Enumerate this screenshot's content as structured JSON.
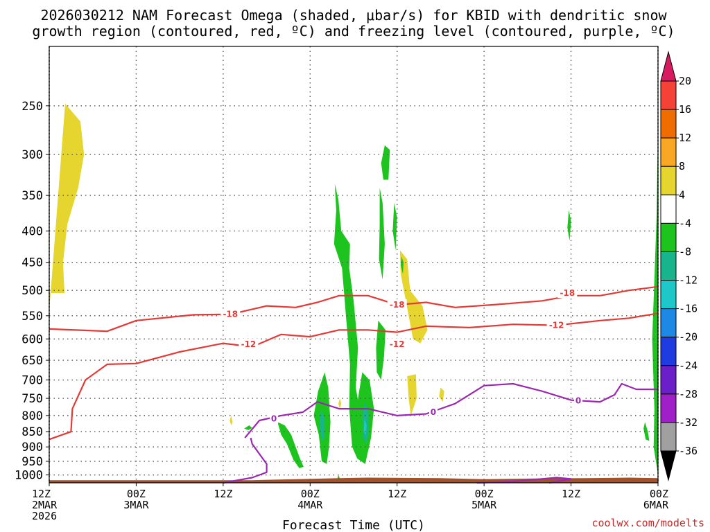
{
  "title_line1": "2026030212 NAM Forecast Omega (shaded, μbar/s) for KBID with dendritic snow",
  "title_line2": "growth region (contoured, red, ºC) and freezing level (contoured, purple, ºC)",
  "credit": "coolwx.com/modelts",
  "chart_data": {
    "type": "heatmap",
    "xlabel": "Forecast Time (UTC)",
    "y_scale": "log-pressure",
    "ylim": [
      1030,
      200
    ],
    "y_ticks": [
      "250",
      "300",
      "350",
      "400",
      "450",
      "500",
      "550",
      "600",
      "650",
      "700",
      "750",
      "800",
      "850",
      "900",
      "950",
      "1000"
    ],
    "x_range_hours": [
      0,
      84
    ],
    "x_ticks": [
      {
        "hour": 0,
        "lines": [
          "12Z",
          "2MAR",
          "2026"
        ]
      },
      {
        "hour": 12,
        "lines": [
          "00Z",
          "3MAR"
        ]
      },
      {
        "hour": 24,
        "lines": [
          "12Z"
        ]
      },
      {
        "hour": 36,
        "lines": [
          "00Z",
          "4MAR"
        ]
      },
      {
        "hour": 48,
        "lines": [
          "12Z"
        ]
      },
      {
        "hour": 60,
        "lines": [
          "00Z",
          "5MAR"
        ]
      },
      {
        "hour": 72,
        "lines": [
          "12Z"
        ]
      },
      {
        "hour": 84,
        "lines": [
          "00Z",
          "6MAR"
        ]
      }
    ],
    "grid": true,
    "colorbar": {
      "labels": [
        "20",
        "16",
        "12",
        "8",
        "4",
        "-4",
        "-8",
        "-12",
        "-16",
        "-20",
        "-24",
        "-28",
        "-32",
        "-36"
      ],
      "levels": [
        20,
        16,
        12,
        8,
        4,
        -4,
        -8,
        -12,
        -16,
        -20,
        -24,
        -28,
        -32,
        -36
      ],
      "colors": [
        "#d81b60",
        "#f44336",
        "#ef6c00",
        "#f9a825",
        "#e6d52e",
        "#ffffff",
        "#1ec41e",
        "#18b48c",
        "#1ec8c8",
        "#1e88e5",
        "#1e3ce0",
        "#6a1fc8",
        "#a020c8",
        "#a0a0a0",
        "#000000"
      ]
    },
    "omega_regions": [
      {
        "level": "4",
        "color": "#e6d52e",
        "points": [
          [
            0,
            540
          ],
          [
            2.2,
            248
          ],
          [
            4.3,
            265
          ],
          [
            4.8,
            300
          ],
          [
            4,
            340
          ],
          [
            2.5,
            390
          ],
          [
            1.9,
            450
          ],
          [
            2.1,
            505
          ],
          [
            0,
            505
          ]
        ]
      },
      {
        "level": "4",
        "color": "#e6d52e",
        "points": [
          [
            48.4,
            430
          ],
          [
            49.4,
            445
          ],
          [
            49.8,
            500
          ],
          [
            51.5,
            530
          ],
          [
            52.2,
            580
          ],
          [
            51.2,
            610
          ],
          [
            50.2,
            600
          ],
          [
            49.2,
            520
          ],
          [
            48.5,
            470
          ]
        ]
      },
      {
        "level": "4",
        "color": "#e6d52e",
        "points": [
          [
            49.4,
            690
          ],
          [
            50.6,
            685
          ],
          [
            50.7,
            750
          ],
          [
            49.9,
            800
          ],
          [
            49.6,
            750
          ]
        ]
      },
      {
        "level": "4",
        "color": "#e6d52e",
        "points": [
          [
            54,
            720
          ],
          [
            54.5,
            730
          ],
          [
            54.3,
            760
          ],
          [
            53.8,
            745
          ]
        ]
      },
      {
        "level": "4",
        "color": "#e6d52e",
        "points": [
          [
            25.1,
            800
          ],
          [
            25.3,
            820
          ],
          [
            25.1,
            830
          ],
          [
            24.9,
            815
          ]
        ]
      },
      {
        "level": "4",
        "color": "#e6d52e",
        "points": [
          [
            40.1,
            750
          ],
          [
            40.3,
            765
          ],
          [
            40.1,
            780
          ],
          [
            39.9,
            765
          ]
        ]
      },
      {
        "level": "-4",
        "color": "#1ec41e",
        "points": [
          [
            46.3,
            290
          ],
          [
            47,
            295
          ],
          [
            46.8,
            330
          ],
          [
            46.1,
            330
          ],
          [
            45.8,
            310
          ]
        ]
      },
      {
        "level": "-4",
        "color": "#1ec41e",
        "points": [
          [
            39.4,
            335
          ],
          [
            39.9,
            355
          ],
          [
            40.3,
            400
          ],
          [
            41.5,
            420
          ],
          [
            41.4,
            460
          ],
          [
            42,
            520
          ],
          [
            42.6,
            620
          ],
          [
            42.3,
            720
          ],
          [
            43.2,
            830
          ],
          [
            42.5,
            940
          ],
          [
            41.8,
            900
          ],
          [
            41.4,
            780
          ],
          [
            41.5,
            660
          ],
          [
            41,
            560
          ],
          [
            40.4,
            460
          ],
          [
            39.3,
            420
          ],
          [
            39.6,
            370
          ]
        ]
      },
      {
        "level": "-4",
        "color": "#1ec41e",
        "points": [
          [
            45.6,
            340
          ],
          [
            46,
            360
          ],
          [
            46.3,
            420
          ],
          [
            46,
            480
          ],
          [
            45.5,
            445
          ],
          [
            45.6,
            390
          ]
        ]
      },
      {
        "level": "-4",
        "color": "#1ec41e",
        "points": [
          [
            47.6,
            360
          ],
          [
            48,
            380
          ],
          [
            47.8,
            430
          ],
          [
            47.4,
            400
          ]
        ]
      },
      {
        "level": "-4",
        "color": "#1ec41e",
        "points": [
          [
            45.4,
            560
          ],
          [
            46.4,
            580
          ],
          [
            46.2,
            640
          ],
          [
            45.8,
            700
          ],
          [
            45.2,
            680
          ],
          [
            45.1,
            620
          ]
        ]
      },
      {
        "level": "-4",
        "color": "#1ec41e",
        "points": [
          [
            48.6,
            440
          ],
          [
            48.9,
            450
          ],
          [
            48.8,
            470
          ],
          [
            48.5,
            455
          ]
        ]
      },
      {
        "level": "-4",
        "color": "#1ec41e",
        "points": [
          [
            39.9,
            1000
          ],
          [
            40.2,
            1020
          ],
          [
            39.7,
            1020
          ]
        ]
      },
      {
        "level": "-4",
        "color": "#1ec41e",
        "points": [
          [
            38,
            680
          ],
          [
            38.5,
            720
          ],
          [
            38.8,
            820
          ],
          [
            38.6,
            900
          ],
          [
            38.3,
            960
          ],
          [
            37.6,
            950
          ],
          [
            37.2,
            860
          ],
          [
            36.5,
            800
          ],
          [
            37.1,
            730
          ]
        ]
      },
      {
        "level": "-4",
        "color": "#1ec41e",
        "points": [
          [
            43.2,
            680
          ],
          [
            44.2,
            700
          ],
          [
            44.8,
            780
          ],
          [
            44.4,
            870
          ],
          [
            43.6,
            960
          ],
          [
            42.5,
            940
          ],
          [
            42.2,
            850
          ],
          [
            42.6,
            750
          ]
        ]
      },
      {
        "level": "-4",
        "color": "#1ec41e",
        "points": [
          [
            31.5,
            820
          ],
          [
            32.5,
            830
          ],
          [
            33.4,
            860
          ],
          [
            34,
            900
          ],
          [
            34.6,
            940
          ],
          [
            35.1,
            970
          ],
          [
            34.5,
            975
          ],
          [
            33.7,
            945
          ],
          [
            32.8,
            890
          ],
          [
            32,
            860
          ]
        ]
      },
      {
        "level": "-4",
        "color": "#1ec41e",
        "points": [
          [
            27.6,
            830
          ],
          [
            28,
            838
          ],
          [
            27.5,
            845
          ],
          [
            26.9,
            840
          ]
        ]
      },
      {
        "level": "-4",
        "color": "#1ec41e",
        "points": [
          [
            71.7,
            370
          ],
          [
            72,
            385
          ],
          [
            71.8,
            415
          ],
          [
            71.5,
            395
          ]
        ]
      },
      {
        "level": "-4",
        "color": "#1ec41e",
        "points": [
          [
            82.2,
            820
          ],
          [
            82.6,
            850
          ],
          [
            82.8,
            880
          ],
          [
            82.3,
            875
          ],
          [
            82,
            840
          ]
        ]
      },
      {
        "level": "-4",
        "color": "#1ec41e",
        "points": [
          [
            84,
            270
          ],
          [
            83.8,
            380
          ],
          [
            83.5,
            480
          ],
          [
            83.2,
            600
          ],
          [
            83.5,
            780
          ],
          [
            83.4,
            900
          ],
          [
            84,
            1000
          ]
        ]
      },
      {
        "level": "-8",
        "color": "#18b48c",
        "points": [
          [
            43.6,
            760
          ],
          [
            44,
            790
          ],
          [
            44,
            860
          ],
          [
            43.7,
            890
          ],
          [
            43.3,
            870
          ],
          [
            43.2,
            800
          ]
        ]
      },
      {
        "level": "-8",
        "color": "#18b48c",
        "points": [
          [
            37.5,
            780
          ],
          [
            38,
            810
          ],
          [
            38,
            870
          ],
          [
            37.6,
            880
          ],
          [
            37.3,
            830
          ]
        ]
      },
      {
        "level": "-12",
        "color": "#1ec8c8",
        "points": [
          [
            43.5,
            810
          ],
          [
            43.8,
            830
          ],
          [
            43.7,
            860
          ],
          [
            43.4,
            850
          ]
        ]
      }
    ],
    "contours": [
      {
        "label": "-18",
        "color": "#e53935",
        "points": [
          [
            0,
            578
          ],
          [
            8,
            583
          ],
          [
            12,
            560
          ],
          [
            20,
            548
          ],
          [
            25,
            547
          ],
          [
            30,
            530
          ],
          [
            34,
            533
          ],
          [
            37,
            523
          ],
          [
            40,
            510
          ],
          [
            44,
            510
          ],
          [
            48,
            528
          ],
          [
            52,
            523
          ],
          [
            56,
            533
          ],
          [
            62,
            527
          ],
          [
            68,
            520
          ],
          [
            72,
            510
          ],
          [
            76,
            510
          ],
          [
            80,
            500
          ],
          [
            84,
            493
          ]
        ]
      },
      {
        "label": "-12",
        "color": "#e53935",
        "points": [
          [
            0,
            875
          ],
          [
            3,
            850
          ],
          [
            3.2,
            780
          ],
          [
            5,
            700
          ],
          [
            8,
            660
          ],
          [
            12,
            658
          ],
          [
            18,
            630
          ],
          [
            24,
            610
          ],
          [
            28,
            618
          ],
          [
            32,
            590
          ],
          [
            36,
            595
          ],
          [
            40,
            580
          ],
          [
            44,
            580
          ],
          [
            48,
            585
          ],
          [
            52,
            572
          ],
          [
            58,
            575
          ],
          [
            64,
            568
          ],
          [
            70,
            570
          ],
          [
            76,
            560
          ],
          [
            80,
            555
          ],
          [
            84,
            545
          ]
        ]
      },
      {
        "label": "0",
        "color": "#9c27b0",
        "points": [
          [
            27,
            870
          ],
          [
            29,
            815
          ],
          [
            32,
            800
          ],
          [
            35,
            790
          ],
          [
            37,
            760
          ],
          [
            40,
            780
          ],
          [
            44,
            780
          ],
          [
            48,
            800
          ],
          [
            52,
            795
          ],
          [
            56,
            765
          ],
          [
            60,
            715
          ],
          [
            64,
            710
          ],
          [
            68,
            730
          ],
          [
            72,
            755
          ],
          [
            76,
            760
          ],
          [
            78,
            740
          ],
          [
            79,
            710
          ],
          [
            81,
            725
          ],
          [
            84,
            725
          ]
        ]
      },
      {
        "label": "0",
        "color": "#9c27b0",
        "points": [
          [
            24,
            1030
          ],
          [
            28,
            1010
          ],
          [
            30,
            990
          ],
          [
            30,
            960
          ],
          [
            28,
            890
          ],
          [
            27.8,
            870
          ]
        ]
      },
      {
        "label": "0",
        "color": "#9c27b0",
        "points": [
          [
            59,
            1030
          ],
          [
            64,
            1025
          ],
          [
            70,
            1010
          ],
          [
            72,
            1015
          ],
          [
            69,
            1030
          ]
        ]
      }
    ],
    "contour_labels": [
      {
        "text": "-18",
        "x": 25,
        "p": 547,
        "color": "#e53935"
      },
      {
        "text": "-18",
        "x": 48,
        "p": 528,
        "color": "#e53935"
      },
      {
        "text": "-18",
        "x": 71.5,
        "p": 505,
        "color": "#e53935"
      },
      {
        "text": "-12",
        "x": 27.5,
        "p": 612,
        "color": "#e53935"
      },
      {
        "text": "-12",
        "x": 48,
        "p": 612,
        "color": "#e53935"
      },
      {
        "text": "-12",
        "x": 70,
        "p": 570,
        "color": "#e53935"
      },
      {
        "text": "0",
        "x": 31,
        "p": 810,
        "color": "#9c27b0"
      },
      {
        "text": "0",
        "x": 53,
        "p": 790,
        "color": "#9c27b0"
      },
      {
        "text": "0",
        "x": 73,
        "p": 757,
        "color": "#9c27b0"
      }
    ],
    "terrain": {
      "color": "#a0522d",
      "points": [
        [
          0,
          1030
        ],
        [
          84,
          1030
        ],
        [
          84,
          1012
        ],
        [
          80,
          1010
        ],
        [
          74,
          1012
        ],
        [
          68,
          1013
        ],
        [
          60,
          1016
        ],
        [
          54,
          1012
        ],
        [
          44,
          1010
        ],
        [
          40,
          1012
        ],
        [
          34,
          1016
        ],
        [
          28,
          1020
        ],
        [
          20,
          1020
        ],
        [
          10,
          1020
        ],
        [
          0,
          1020
        ]
      ]
    }
  }
}
